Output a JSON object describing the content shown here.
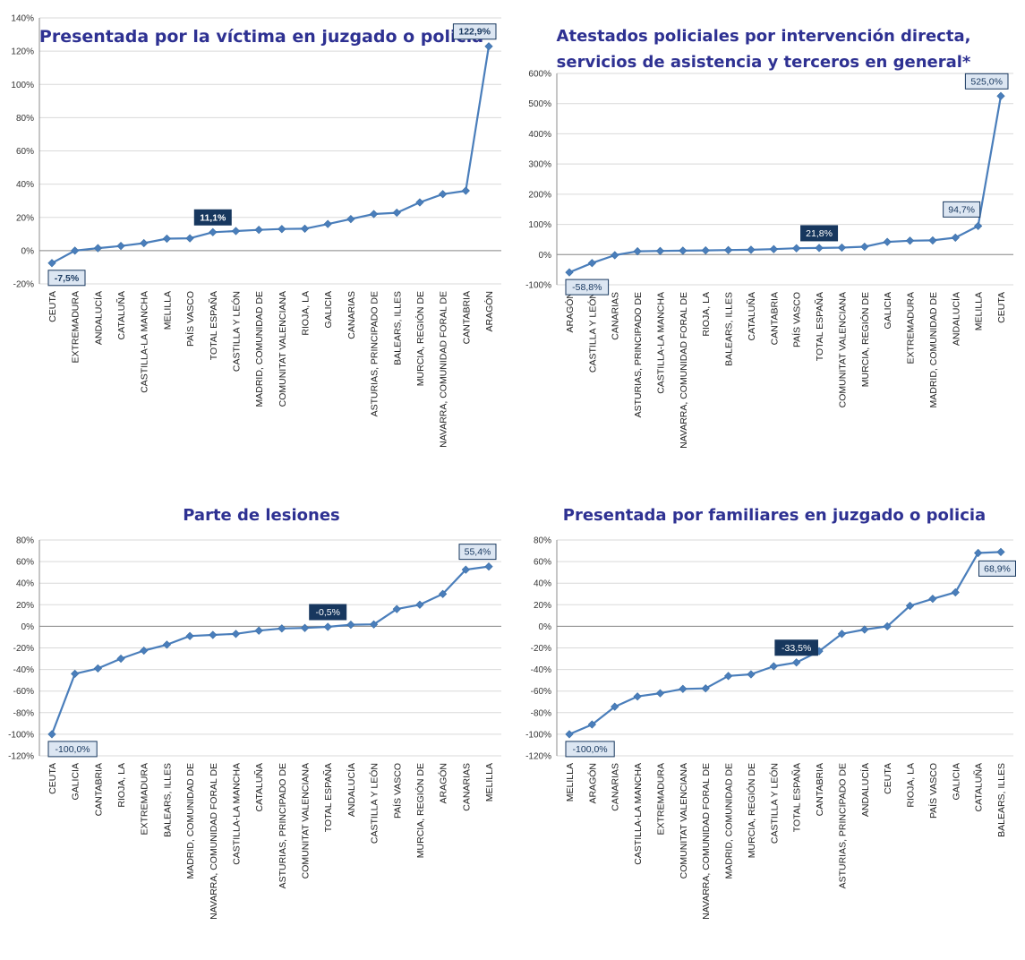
{
  "chart_data": [
    {
      "type": "line",
      "title_lines": [
        "Presentada por la víctima en juzgado o policía"
      ],
      "categories": [
        "CEUTA",
        "EXTREMADURA",
        "ANDALUCÍA",
        "CATALUÑA",
        "CASTILLA-LA MANCHA",
        "MELILLA",
        "PAÍS VASCO",
        "TOTAL ESPAÑA",
        "CASTILLA Y LEÓN",
        "MADRID, COMUNIDAD DE",
        "COMUNITAT VALENCIANA",
        "RIOJA, LA",
        "GALICIA",
        "CANARIAS",
        "ASTURIAS, PRINCIPADO DE",
        "BALEARS, ILLES",
        "MURCIA, REGIÓN DE",
        "NAVARRA, COMUNIDAD FORAL DE",
        "CANTABRIA",
        "ARAGÓN"
      ],
      "values": [
        -7.5,
        0,
        1.5,
        2.8,
        4.5,
        7.2,
        7.4,
        11.1,
        11.8,
        12.5,
        13,
        13.2,
        16,
        19,
        22,
        22.8,
        29,
        34,
        36,
        122.9
      ],
      "ylim": [
        -20,
        140
      ],
      "yticks": [
        -20,
        0,
        20,
        40,
        60,
        80,
        100,
        120,
        140
      ],
      "tick_suffix": "%",
      "grid": true,
      "labels": [
        {
          "index": 0,
          "text": "-7,5%",
          "style": "light"
        },
        {
          "index": 7,
          "text": "11,1%",
          "style": "dark"
        },
        {
          "index": 19,
          "text": "122,9%",
          "style": "light"
        }
      ]
    },
    {
      "type": "line",
      "title_lines": [
        "Atestados policiales por intervención directa,",
        "servicios de asistencia y terceros en general*"
      ],
      "categories": [
        "ARAGÓN",
        "CASTILLA Y LEÓN",
        "CANARIAS",
        "ASTURIAS, PRINCIPADO DE",
        "CASTILLA-LA MANCHA",
        "NAVARRA, COMUNIDAD FORAL DE",
        "RIOJA, LA",
        "BALEARS, ILLES",
        "CATALUÑA",
        "CANTABRIA",
        "PAÍS VASCO",
        "TOTAL ESPAÑA",
        "COMUNITAT VALENCIANA",
        "MURCIA, REGIÓN DE",
        "GALICIA",
        "EXTREMADURA",
        "MADRID, COMUNIDAD DE",
        "ANDALUCÍA",
        "MELILLA",
        "CEUTA"
      ],
      "values": [
        -58.8,
        -28,
        -2,
        11,
        12,
        13,
        14,
        15,
        16,
        18,
        21,
        21.8,
        23,
        26,
        42,
        46,
        47,
        56,
        94.7,
        525
      ],
      "ylim": [
        -100,
        600
      ],
      "yticks": [
        -100,
        0,
        100,
        200,
        300,
        400,
        500,
        600
      ],
      "tick_suffix": "%",
      "grid": true,
      "labels": [
        {
          "index": 0,
          "text": "-58,8%",
          "style": "light"
        },
        {
          "index": 11,
          "text": "21,8%",
          "style": "dark"
        },
        {
          "index": 18,
          "text": "94,7%",
          "style": "light"
        },
        {
          "index": 19,
          "text": "525,0%",
          "style": "light"
        }
      ]
    },
    {
      "type": "line",
      "title_lines": [
        "Parte de lesiones"
      ],
      "categories": [
        "CEUTA",
        "GALICIA",
        "CANTABRIA",
        "RIOJA, LA",
        "EXTREMADURA",
        "BALEARS, ILLES",
        "MADRID, COMUNIDAD DE",
        "NAVARRA, COMUNIDAD FORAL DE",
        "CASTILLA-LA MANCHA",
        "CATALUÑA",
        "ASTURIAS, PRINCIPADO DE",
        "COMUNITAT VALENCIANA",
        "TOTAL ESPAÑA",
        "ANDALUCÍA",
        "CASTILLA Y LEÓN",
        "PAÍS VASCO",
        "MURCIA, REGIÓN DE",
        "ARAGÓN",
        "CANARIAS",
        "MELILLA"
      ],
      "values": [
        -100,
        -44,
        -39,
        -30,
        -22.5,
        -17,
        -9,
        -8,
        -7,
        -4,
        -2,
        -1.5,
        -0.5,
        1.5,
        1.8,
        16,
        20,
        30,
        52.5,
        55.4
      ],
      "ylim": [
        -120,
        80
      ],
      "yticks": [
        -120,
        -100,
        -80,
        -60,
        -40,
        -20,
        0,
        20,
        40,
        60,
        80
      ],
      "tick_suffix": "%",
      "grid": true,
      "labels": [
        {
          "index": 0,
          "text": "-100,0%",
          "style": "light"
        },
        {
          "index": 12,
          "text": "-0,5%",
          "style": "dark"
        },
        {
          "index": 19,
          "text": "55,4%",
          "style": "light"
        }
      ]
    },
    {
      "type": "line",
      "title_lines": [
        "Presentada por familiares en juzgado o policia"
      ],
      "categories": [
        "MELILLA",
        "ARAGÓN",
        "CANARIAS",
        "CASTILLA-LA MANCHA",
        "EXTREMADURA",
        "COMUNITAT VALENCIANA",
        "NAVARRA, COMUNIDAD FORAL DE",
        "MADRID, COMUNIDAD DE",
        "MURCIA, REGIÓN DE",
        "CASTILLA Y LEÓN",
        "TOTAL ESPAÑA",
        "CANTABRIA",
        "ASTURIAS, PRINCIPADO DE",
        "ANDALUCÍA",
        "CEUTA",
        "RIOJA, LA",
        "PAÍS VASCO",
        "GALICIA",
        "CATALUÑA",
        "BALEARS, ILLES"
      ],
      "values": [
        -100,
        -91,
        -74.5,
        -65,
        -62,
        -58,
        -57.5,
        -46,
        -44.5,
        -37,
        -33.5,
        -23,
        -7,
        -3,
        0,
        19,
        25.5,
        31.5,
        68,
        68.9
      ],
      "ylim": [
        -120,
        80
      ],
      "yticks": [
        -120,
        -100,
        -80,
        -60,
        -40,
        -20,
        0,
        20,
        40,
        60,
        80
      ],
      "tick_suffix": "%",
      "grid": true,
      "labels": [
        {
          "index": 0,
          "text": "-100,0%",
          "style": "light"
        },
        {
          "index": 10,
          "text": "-33,5%",
          "style": "dark"
        },
        {
          "index": 19,
          "text": "68,9%",
          "style": "light"
        }
      ]
    }
  ],
  "colors": {
    "series": "#4a7ebb",
    "title": "#2e3192",
    "label_dark_fill": "#17375e",
    "label_dark_text": "#ffffff",
    "label_light_fill": "#dce6f2",
    "label_light_border": "#17375e",
    "label_light_text": "#17375e"
  }
}
